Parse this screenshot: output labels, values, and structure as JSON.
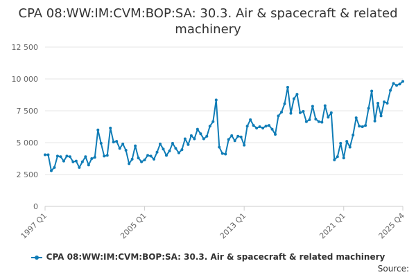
{
  "chart_data": {
    "type": "line",
    "title": "CPA 08:WW:IM:CVM:BOP:SA: 30.3. Air & spacecraft & related machinery",
    "xlabel": "",
    "ylabel": "",
    "ylim": [
      0,
      12500
    ],
    "yticks": [
      "0",
      "2 500",
      "5 000",
      "7 500",
      "10 000",
      "12 500"
    ],
    "ytick_values": [
      0,
      2500,
      5000,
      7500,
      10000,
      12500
    ],
    "xticks": [
      {
        "label": "1997 Q1",
        "index": 0
      },
      {
        "label": "2005 Q1",
        "index": 32
      },
      {
        "label": "2013 Q1",
        "index": 64
      },
      {
        "label": "2021 Q1",
        "index": 96
      },
      {
        "label": "2025 Q4",
        "index": 115
      }
    ],
    "grid": "horizontal",
    "legend_position": "bottom-center",
    "color": "#0f7cb6",
    "series": [
      {
        "name": "CPA 08:WW:IM:CVM:BOP:SA: 30.3. Air & spacecraft & related machinery",
        "start": "1997 Q1",
        "frequency": "quarterly",
        "values": [
          4050,
          4050,
          2800,
          3050,
          3950,
          3900,
          3550,
          3950,
          3900,
          3500,
          3550,
          3050,
          3500,
          3900,
          3250,
          3750,
          3850,
          6000,
          4950,
          3950,
          4000,
          6150,
          5050,
          5100,
          4550,
          4900,
          4400,
          3350,
          3700,
          4750,
          3800,
          3500,
          3650,
          4000,
          3950,
          3700,
          4250,
          4900,
          4500,
          4000,
          4350,
          4950,
          4550,
          4200,
          4450,
          5300,
          4850,
          5550,
          5300,
          6050,
          5700,
          5300,
          5500,
          6300,
          6650,
          8350,
          4650,
          4150,
          4100,
          5250,
          5550,
          5150,
          5500,
          5450,
          4800,
          6300,
          6800,
          6350,
          6150,
          6250,
          6150,
          6300,
          6350,
          6050,
          5650,
          7100,
          7400,
          8050,
          9350,
          7300,
          8450,
          8800,
          7350,
          7450,
          6650,
          6800,
          7850,
          6850,
          6650,
          6600,
          7900,
          7000,
          7350,
          3650,
          3900,
          4950,
          3800,
          5100,
          4650,
          5600,
          6950,
          6300,
          6250,
          6350,
          7700,
          9050,
          6700,
          8100,
          7100,
          8200,
          8100,
          9100,
          9650,
          9500,
          9600,
          9800
        ]
      }
    ],
    "source_label": "Source:"
  }
}
